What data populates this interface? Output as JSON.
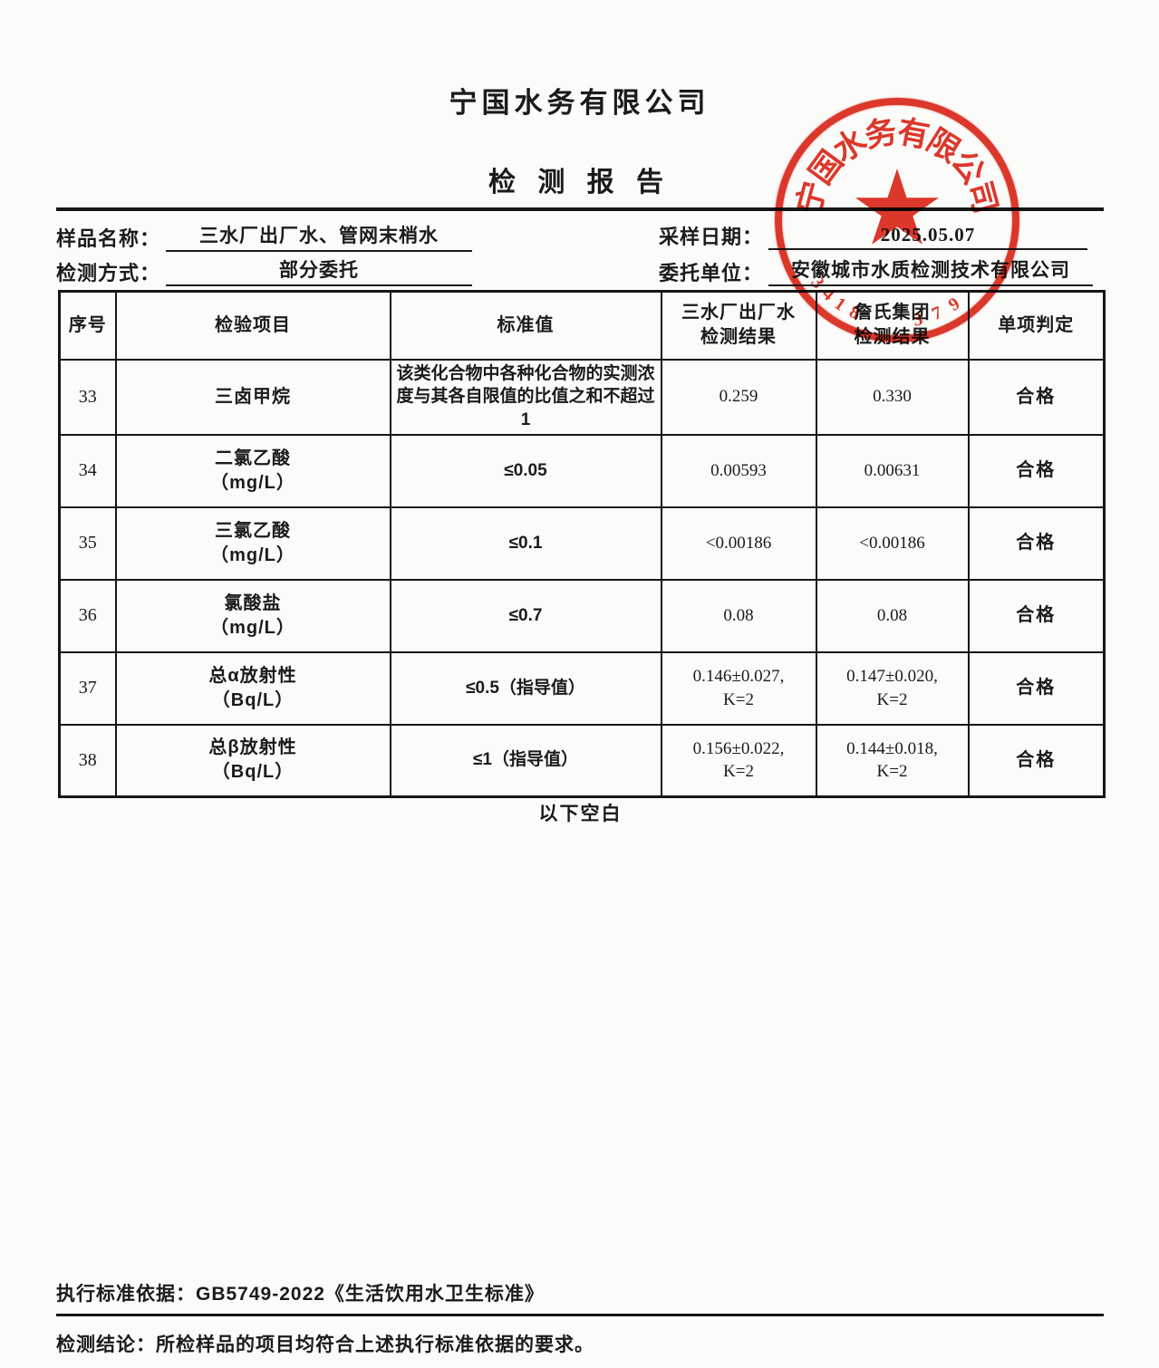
{
  "page": {
    "company": "宁国水务有限公司",
    "report_title": "检 测 报 告",
    "below_blank": "以下空白"
  },
  "info": {
    "sample_label": "样品名称：",
    "sample_value": "三水厂出厂水、管网末梢水",
    "method_label": "检测方式：",
    "method_value": "部分委托",
    "date_label": "采样日期：",
    "date_value": "2025.05.07",
    "client_label": "委托单位：",
    "client_value": "安徽城市水质检测技术有限公司"
  },
  "table": {
    "headers": [
      "序号",
      "检验项目",
      "标准值",
      "三水厂出厂水\n检测结果",
      "詹氏集团\n检测结果",
      "单项判定"
    ],
    "rows": [
      {
        "no": "33",
        "item": "三卤甲烷",
        "standard": "该类化合物中各种化合物的实测浓度与其各自限值的比值之和不超过1",
        "result1": "0.259",
        "result2": "0.330",
        "verdict": "合格"
      },
      {
        "no": "34",
        "item": "二氯乙酸\n（mg/L）",
        "standard": "≤0.05",
        "result1": "0.00593",
        "result2": "0.00631",
        "verdict": "合格"
      },
      {
        "no": "35",
        "item": "三氯乙酸\n（mg/L）",
        "standard": "≤0.1",
        "result1": "<0.00186",
        "result2": "<0.00186",
        "verdict": "合格"
      },
      {
        "no": "36",
        "item": "氯酸盐\n（mg/L）",
        "standard": "≤0.7",
        "result1": "0.08",
        "result2": "0.08",
        "verdict": "合格"
      },
      {
        "no": "37",
        "item": "总α放射性\n（Bq/L）",
        "standard": "≤0.5（指导值）",
        "result1": "0.146±0.027,\nK=2",
        "result2": "0.147±0.020,\nK=2",
        "verdict": "合格"
      },
      {
        "no": "38",
        "item": "总β放射性\n（Bq/L）",
        "standard": "≤1（指导值）",
        "result1": "0.156±0.022,\nK=2",
        "result2": "0.144±0.018,\nK=2",
        "verdict": "合格"
      }
    ]
  },
  "footer": {
    "standard_basis": "执行标准依据：GB5749-2022《生活饮用水卫生标准》",
    "conclusion": "检测结论：所检样品的项目均符合上述执行标准依据的要求。"
  },
  "stamp": {
    "circle_text": "宁国水务有限公司",
    "code_left": "3418",
    "code_right": "379",
    "color": "#dd2a1c"
  }
}
